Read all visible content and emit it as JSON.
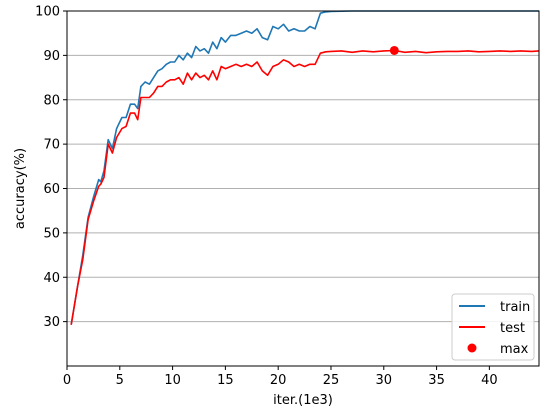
{
  "chart_data": {
    "type": "line",
    "title": "",
    "xlabel": "iter.(1e3)",
    "ylabel": "accuracy(%)",
    "xlim": [
      0,
      44.7
    ],
    "ylim": [
      20,
      100
    ],
    "x_ticks": [
      0,
      5,
      10,
      15,
      20,
      25,
      30,
      35,
      40
    ],
    "y_ticks": [
      30,
      40,
      50,
      60,
      70,
      80,
      90,
      100
    ],
    "grid": "horizontal",
    "legend_position": "lower-right",
    "series": [
      {
        "name": "train",
        "color": "#1f77b4",
        "x": [
          0.4,
          1.0,
          1.5,
          2.0,
          2.5,
          3.0,
          3.2,
          3.5,
          3.9,
          4.3,
          4.7,
          5.2,
          5.6,
          6.0,
          6.4,
          6.7,
          7.0,
          7.4,
          7.8,
          8.2,
          8.6,
          9.0,
          9.4,
          9.8,
          10.2,
          10.6,
          11.0,
          11.4,
          11.8,
          12.2,
          12.6,
          13.0,
          13.4,
          13.8,
          14.2,
          14.6,
          15.0,
          15.5,
          16.0,
          16.5,
          17.0,
          17.5,
          18.0,
          18.5,
          19.0,
          19.5,
          20.0,
          20.5,
          21.0,
          21.5,
          22.0,
          22.5,
          23.0,
          23.5,
          24.0,
          24.5,
          25.0,
          27.0,
          30.0,
          35.0,
          40.0,
          44.7
        ],
        "values": [
          29.3,
          38.0,
          45.0,
          53.5,
          58.0,
          62.0,
          61.5,
          64.0,
          71.0,
          69.0,
          73.5,
          76.0,
          76.0,
          79.0,
          79.0,
          78.0,
          83.0,
          84.0,
          83.5,
          85.0,
          86.5,
          87.0,
          88.0,
          88.5,
          88.5,
          90.0,
          89.0,
          90.5,
          89.5,
          92.0,
          91.0,
          91.5,
          90.5,
          93.0,
          91.5,
          94.0,
          93.0,
          94.5,
          94.5,
          95.0,
          95.5,
          95.0,
          96.0,
          94.0,
          93.5,
          96.5,
          96.0,
          97.0,
          95.5,
          96.0,
          95.5,
          95.5,
          96.5,
          96.0,
          99.5,
          99.8,
          99.9,
          100.0,
          100.0,
          100.0,
          100.0,
          100.0
        ]
      },
      {
        "name": "test",
        "color": "#ff0000",
        "x": [
          0.4,
          1.0,
          1.5,
          2.0,
          2.5,
          3.0,
          3.2,
          3.5,
          3.9,
          4.3,
          4.7,
          5.2,
          5.6,
          6.0,
          6.4,
          6.7,
          7.0,
          7.4,
          7.8,
          8.2,
          8.6,
          9.0,
          9.4,
          9.8,
          10.2,
          10.6,
          11.0,
          11.4,
          11.8,
          12.2,
          12.6,
          13.0,
          13.4,
          13.8,
          14.2,
          14.6,
          15.0,
          15.5,
          16.0,
          16.5,
          17.0,
          17.5,
          18.0,
          18.5,
          19.0,
          19.5,
          20.0,
          20.5,
          21.0,
          21.5,
          22.0,
          22.5,
          23.0,
          23.5,
          24.0,
          24.5,
          25.0,
          26.0,
          27.0,
          28.0,
          29.0,
          30.0,
          31.0,
          32.0,
          33.0,
          34.0,
          35.0,
          36.0,
          37.0,
          38.0,
          39.0,
          40.0,
          41.0,
          42.0,
          43.0,
          44.0,
          44.7
        ],
        "values": [
          29.3,
          38.0,
          44.0,
          53.0,
          57.0,
          60.5,
          61.0,
          62.5,
          70.0,
          68.0,
          71.5,
          73.5,
          74.0,
          77.0,
          77.0,
          75.5,
          80.5,
          80.5,
          80.5,
          81.5,
          83.0,
          83.0,
          84.0,
          84.5,
          84.5,
          85.0,
          83.5,
          86.0,
          84.5,
          86.0,
          85.0,
          85.5,
          84.5,
          86.5,
          84.5,
          87.5,
          87.0,
          87.5,
          88.0,
          87.5,
          88.0,
          87.5,
          88.5,
          86.5,
          85.5,
          87.5,
          88.0,
          89.0,
          88.5,
          87.5,
          88.0,
          87.5,
          88.0,
          88.0,
          90.5,
          90.8,
          90.9,
          91.0,
          90.7,
          91.0,
          90.8,
          91.0,
          91.1,
          90.7,
          90.9,
          90.6,
          90.8,
          90.9,
          90.9,
          91.0,
          90.8,
          90.9,
          91.0,
          90.9,
          91.0,
          90.9,
          91.0
        ]
      }
    ],
    "markers": [
      {
        "name": "max",
        "color": "#ff0000",
        "x": 31.0,
        "y": 91.1
      }
    ]
  }
}
